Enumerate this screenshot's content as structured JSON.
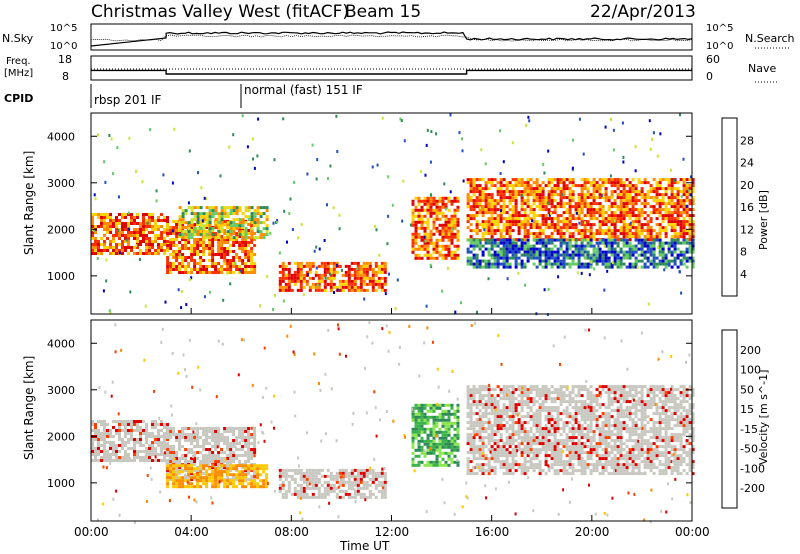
{
  "header": {
    "title": "Christmas Valley West (fitACF)",
    "beam": "Beam 15",
    "date": "22/Apr/2013"
  },
  "top_panels": {
    "nsky_label": "N.Sky",
    "nsearch_label": "N.Search",
    "nsky_ticks": [
      "10^5",
      "10^0"
    ],
    "nsky_right_ticks": [
      "10^5",
      "10^0"
    ],
    "freq_label": "Freq.",
    "freq_unit": "[MHz]",
    "freq_ticks": [
      "18",
      "8"
    ],
    "nave_label": "Nave",
    "nave_ticks": [
      "60",
      "0"
    ],
    "cpid_label": "CPID",
    "cpid_modes": [
      {
        "label": "rbsp 201 IF",
        "start_hour": 0
      },
      {
        "label": "normal (fast) 151 IF",
        "start_hour": 6
      }
    ],
    "freq_steps": [
      {
        "from": 0,
        "to": 3,
        "mhz": 12
      },
      {
        "from": 3,
        "to": 15,
        "mhz": 10.5
      },
      {
        "from": 15,
        "to": 24,
        "mhz": 12
      }
    ]
  },
  "chart_data": [
    {
      "type": "heatmap",
      "quantity": "Power",
      "xlabel": "",
      "ylabel": "Slant Range [km]",
      "xlim": [
        0,
        24
      ],
      "ylim": [
        180,
        4500
      ],
      "yticks": [
        "4000",
        "3000",
        "2000",
        "1000"
      ],
      "colorbar_label": "Power [dB]",
      "colorbar_ticks": [
        "28",
        "24",
        "20",
        "16",
        "12",
        "8",
        "4"
      ],
      "colorbar_colors": [
        "#0000cc",
        "#2050c0",
        "#2e8b57",
        "#66cd66",
        "#c8e632",
        "#ffd200",
        "#ff8c00",
        "#ff3000",
        "#e00000"
      ],
      "echo_regions": [
        {
          "x0": 0,
          "x1": 3,
          "y0": 1450,
          "y1": 2350,
          "power": "high"
        },
        {
          "x0": 3,
          "x1": 6.5,
          "y0": 1100,
          "y1": 2200,
          "power": "high"
        },
        {
          "x0": 3.5,
          "x1": 7,
          "y0": 1800,
          "y1": 2500,
          "power": "medium"
        },
        {
          "x0": 7.5,
          "x1": 11.7,
          "y0": 700,
          "y1": 1300,
          "power": "high"
        },
        {
          "x0": 12.8,
          "x1": 14.7,
          "y0": 1400,
          "y1": 2700,
          "power": "high"
        },
        {
          "x0": 15,
          "x1": 24,
          "y0": 1800,
          "y1": 3100,
          "power": "high"
        },
        {
          "x0": 15,
          "x1": 24,
          "y0": 1200,
          "y1": 1800,
          "power": "low"
        }
      ]
    },
    {
      "type": "heatmap",
      "quantity": "Velocity",
      "xlabel": "Time UT",
      "ylabel": "Slant Range [km]",
      "xlim": [
        0,
        24
      ],
      "ylim": [
        180,
        4500
      ],
      "xticks": [
        "00:00",
        "04:00",
        "08:00",
        "12:00",
        "16:00",
        "20:00",
        "00:00"
      ],
      "yticks": [
        "4000",
        "3000",
        "2000",
        "1000"
      ],
      "colorbar_label": "Velocity [m s^-1]",
      "colorbar_ticks": [
        "200",
        "100",
        "50",
        "15",
        "-15",
        "-50",
        "-100",
        "-200"
      ],
      "colorbar_colors": [
        "#1e3cb4",
        "#2e8b57",
        "#3cb44b",
        "#8ce650",
        "#c8c8c0",
        "#ffc800",
        "#ff8c00",
        "#ff4000",
        "#e00000"
      ],
      "echo_regions": [
        {
          "x0": 0,
          "x1": 3,
          "y0": 1450,
          "y1": 2350,
          "velocity": "low"
        },
        {
          "x0": 3,
          "x1": 6.5,
          "y0": 1100,
          "y1": 2200,
          "velocity": "low"
        },
        {
          "x0": 3,
          "x1": 7,
          "y0": 900,
          "y1": 1400,
          "velocity": "negative"
        },
        {
          "x0": 7.5,
          "x1": 11.7,
          "y0": 700,
          "y1": 1300,
          "velocity": "low"
        },
        {
          "x0": 12.8,
          "x1": 14.7,
          "y0": 1400,
          "y1": 2700,
          "velocity": "positive"
        },
        {
          "x0": 15,
          "x1": 24,
          "y0": 1200,
          "y1": 3100,
          "velocity": "low"
        }
      ]
    }
  ]
}
